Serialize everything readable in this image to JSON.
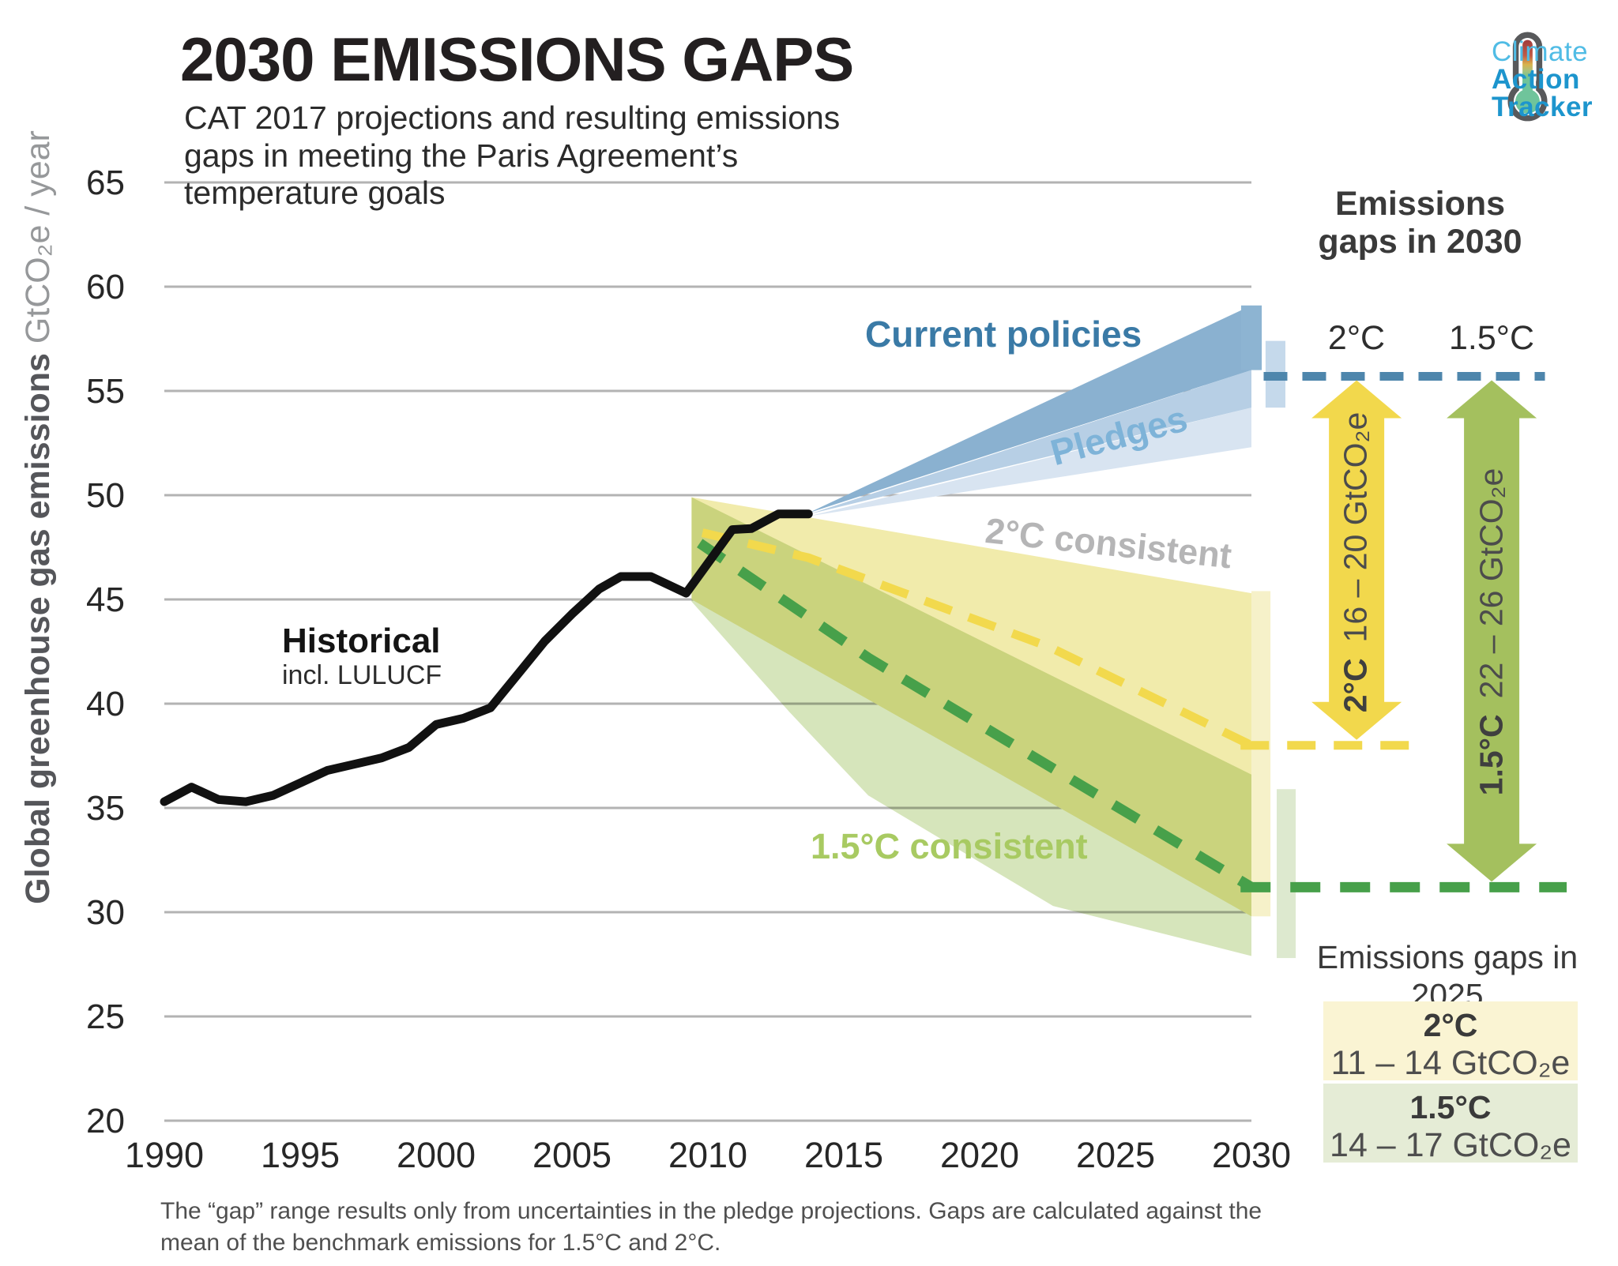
{
  "header": {
    "title": "2030 EMISSIONS GAPS",
    "subtitle": "CAT 2017 projections and resulting emissions gaps in meeting the Paris Agreement’s temperature goals"
  },
  "logo": {
    "line1": "Climate",
    "line2": "Action",
    "line3": "Tracker"
  },
  "chart_data": {
    "type": "area",
    "title": "2030 EMISSIONS GAPS",
    "ylabel_bold": "Global greenhouse gas emissions",
    "ylabel_light": "GtCO₂e / year",
    "xlim": [
      1990,
      2030
    ],
    "ylim": [
      20,
      65
    ],
    "grid": true,
    "y_axis": {
      "ticks": [
        65,
        60,
        55,
        50,
        45,
        40,
        35,
        30,
        25,
        20
      ]
    },
    "x_axis": {
      "ticks": [
        1990,
        1995,
        2000,
        2005,
        2010,
        2015,
        2020,
        2025,
        2030
      ]
    },
    "series_labels": {
      "historical": "Historical",
      "historical_sub": "incl. LULUCF",
      "current_policies": "Current policies",
      "pledges": "Pledges",
      "two_c": "2°C consistent",
      "one_half_c": "1.5°C consistent"
    },
    "key_values": {
      "pledges_mean_2030": 55.7,
      "two_c_benchmark_2030": 38.0,
      "one_half_c_benchmark_2030": 31.2,
      "current_policies_range_2030": [
        56.0,
        59.1
      ],
      "pledges_range_2030": [
        54.2,
        57.4
      ],
      "two_c_range_2030": [
        29.8,
        45.4
      ],
      "one_half_c_range_2030": [
        27.8,
        35.9
      ]
    },
    "layers": [
      {
        "name": "band-2c-consistent",
        "type": "polygon",
        "fill": "#f1ebab",
        "points": [
          [
            2009.4,
            49.9
          ],
          [
            2030,
            45.3
          ],
          [
            2030,
            29.8
          ],
          [
            2009.4,
            45.0
          ]
        ]
      },
      {
        "name": "band-15c-consistent",
        "type": "polygon",
        "fill": "#d6e5bb",
        "blend": "multiply",
        "points": [
          [
            2009.4,
            49.9
          ],
          [
            2030,
            36.6
          ],
          [
            2030,
            27.9
          ],
          [
            2022.7,
            30.3
          ],
          [
            2015.9,
            35.6
          ],
          [
            2013.0,
            39.6
          ],
          [
            2009.4,
            44.9
          ]
        ]
      },
      {
        "name": "wedge-pledges-light",
        "type": "polygon",
        "fill": "#d8e4f1",
        "points": [
          [
            2013.75,
            49.0
          ],
          [
            2030,
            54.2
          ],
          [
            2030,
            52.3
          ]
        ]
      },
      {
        "name": "wedge-pledges-mid",
        "type": "polygon",
        "fill": "#b7cfe5",
        "points": [
          [
            2013.75,
            49.1
          ],
          [
            2030,
            56.0
          ],
          [
            2030,
            54.2
          ]
        ]
      },
      {
        "name": "wedge-current-policies",
        "type": "polygon",
        "fill": "#8ab1d0",
        "points": [
          [
            2013.7,
            49.15
          ],
          [
            2030,
            59.1
          ],
          [
            2030,
            56.0
          ]
        ]
      },
      {
        "name": "bar-2030-2c",
        "type": "rect",
        "fill": "#f6f1c9",
        "x": [
          2030.0,
          2030.7
        ],
        "v": [
          45.4,
          29.8
        ]
      },
      {
        "name": "bar-2030-15c",
        "type": "rect",
        "fill": "#dde9cf",
        "x": [
          2030.93,
          2031.63
        ],
        "v": [
          35.9,
          27.8
        ]
      },
      {
        "name": "bar-2030-current-policies",
        "type": "rect",
        "fill": "#8db4d2",
        "x": [
          2029.62,
          2030.38
        ],
        "v": [
          59.1,
          56.0
        ]
      },
      {
        "name": "bar-2030-pledges",
        "type": "rect",
        "fill": "#c5d9eb",
        "x": [
          2030.52,
          2031.25
        ],
        "v": [
          57.4,
          54.2
        ]
      },
      {
        "name": "benchmark-2c-mean",
        "type": "dashline",
        "stroke": "#f2d94d",
        "width": 11,
        "dash": "36 23",
        "points": [
          [
            2009.8,
            48.2
          ],
          [
            2013.7,
            47.0
          ],
          [
            2022.6,
            42.7
          ],
          [
            2030,
            38.0
          ]
        ]
      },
      {
        "name": "benchmark-15c-mean",
        "type": "dashline",
        "stroke": "#47a04a",
        "width": 13,
        "dash": "36 26",
        "points": [
          [
            2009.7,
            47.7
          ],
          [
            2015.9,
            42.2
          ],
          [
            2030,
            31.2
          ]
        ]
      },
      {
        "name": "gapline-pledges-mean",
        "type": "dashline",
        "stroke": "#4e86ac",
        "width": 11,
        "dash": "30 19",
        "points": [
          [
            2030.45,
            55.7
          ],
          [
            2040.8,
            55.7
          ]
        ]
      },
      {
        "name": "gapline-2c-2030",
        "type": "dashline",
        "stroke": "#f2d94d",
        "width": 11,
        "dash": "36 23",
        "points": [
          [
            2029.6,
            38.0
          ],
          [
            2036.0,
            38.0
          ]
        ]
      },
      {
        "name": "gapline-15c-2030",
        "type": "dashline",
        "stroke": "#47a04a",
        "width": 13,
        "dash": "38 25",
        "points": [
          [
            2029.6,
            31.2
          ],
          [
            2041.6,
            31.2
          ]
        ]
      },
      {
        "name": "historical-line",
        "type": "line",
        "stroke": "#111111",
        "width": 11,
        "points": [
          [
            1990,
            35.3
          ],
          [
            1991,
            36.0
          ],
          [
            1992,
            35.4
          ],
          [
            1993,
            35.3
          ],
          [
            1994,
            35.6
          ],
          [
            1995,
            36.2
          ],
          [
            1996,
            36.8
          ],
          [
            1997,
            37.1
          ],
          [
            1998,
            37.4
          ],
          [
            1999,
            37.9
          ],
          [
            2000,
            39.0
          ],
          [
            2001,
            39.3
          ],
          [
            2002,
            39.8
          ],
          [
            2003,
            41.4
          ],
          [
            2004,
            43.0
          ],
          [
            2005,
            44.3
          ],
          [
            2006,
            45.5
          ],
          [
            2006.8,
            46.1
          ],
          [
            2007.9,
            46.1
          ],
          [
            2009.2,
            45.3
          ],
          [
            2010.9,
            48.35
          ],
          [
            2011.6,
            48.4
          ],
          [
            2012.6,
            49.1
          ],
          [
            2013.7,
            49.1
          ]
        ]
      },
      {
        "name": "gap-arrow-2c",
        "type": "gaparrow",
        "fill": "#f2d84c",
        "x": 2033.87,
        "from": 55.7,
        "to": 38.0
      },
      {
        "name": "gap-arrow-15c",
        "type": "gaparrow",
        "fill": "#a4c05e",
        "x": 2038.84,
        "from": 55.7,
        "to": 31.2
      }
    ]
  },
  "gaps_2030": {
    "title": "Emissions gaps in 2030",
    "col_2c": "2°C",
    "col_15c": "1.5°C",
    "arrow_2c": {
      "label": "2°C",
      "value": "16 – 20 GtCO₂e"
    },
    "arrow_15c": {
      "label": "1.5°C",
      "value": "22 – 26 GtCO₂e"
    }
  },
  "gaps_2025": {
    "title": "Emissions gaps in 2025",
    "rows": [
      {
        "label": "2°C",
        "value": "11 – 14 GtCO₂e"
      },
      {
        "label": "1.5°C",
        "value": "14 – 17 GtCO₂e"
      }
    ]
  },
  "footnote": "The “gap” range results only from uncertainties in the pledge projections. Gaps are calculated against the mean of the benchmark emissions for 1.5°C and 2°C."
}
